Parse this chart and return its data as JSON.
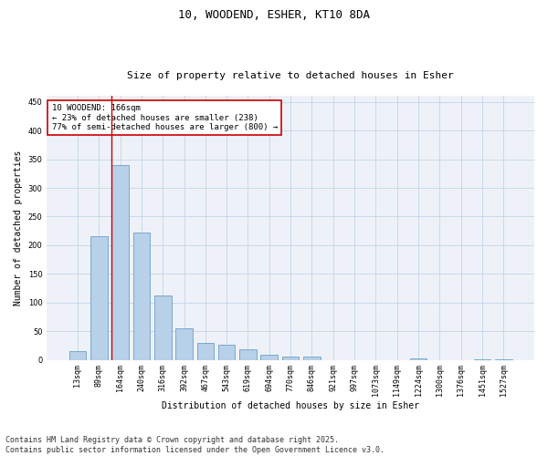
{
  "title_line1": "10, WOODEND, ESHER, KT10 8DA",
  "title_line2": "Size of property relative to detached houses in Esher",
  "xlabel": "Distribution of detached houses by size in Esher",
  "ylabel": "Number of detached properties",
  "bar_color": "#b8d0e8",
  "bar_edge_color": "#6aa0cc",
  "grid_color": "#c8d8ea",
  "background_color": "#eef2f8",
  "marker_line_color": "#cc0000",
  "annotation_text": "10 WOODEND: 166sqm\n← 23% of detached houses are smaller (238)\n77% of semi-detached houses are larger (800) →",
  "annotation_box_color": "#ffffff",
  "annotation_border_color": "#cc0000",
  "categories": [
    "13sqm",
    "89sqm",
    "164sqm",
    "240sqm",
    "316sqm",
    "392sqm",
    "467sqm",
    "543sqm",
    "619sqm",
    "694sqm",
    "770sqm",
    "846sqm",
    "921sqm",
    "997sqm",
    "1073sqm",
    "1149sqm",
    "1224sqm",
    "1300sqm",
    "1376sqm",
    "1451sqm",
    "1527sqm"
  ],
  "values": [
    16,
    216,
    340,
    222,
    113,
    55,
    29,
    26,
    19,
    9,
    6,
    6,
    0,
    0,
    0,
    0,
    2,
    0,
    0,
    1,
    1
  ],
  "ylim": [
    0,
    460
  ],
  "yticks": [
    0,
    50,
    100,
    150,
    200,
    250,
    300,
    350,
    400,
    450
  ],
  "footer_text": "Contains HM Land Registry data © Crown copyright and database right 2025.\nContains public sector information licensed under the Open Government Licence v3.0.",
  "footer_fontsize": 6,
  "title_fontsize1": 9,
  "title_fontsize2": 8,
  "tick_fontsize": 6,
  "label_fontsize": 7,
  "annot_fontsize": 6.5
}
